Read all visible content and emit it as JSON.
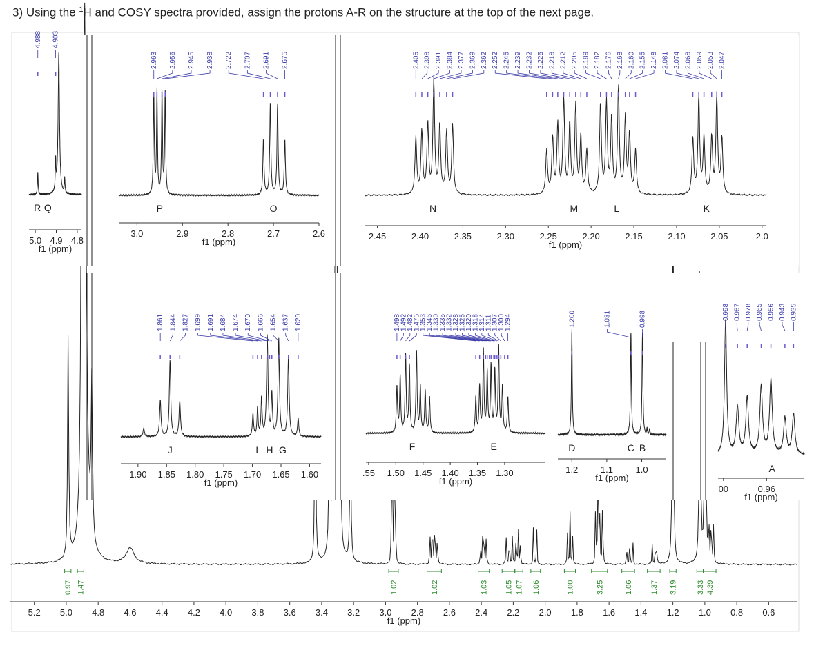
{
  "question": {
    "prefix": "3) Using the ",
    "sup": "1",
    "suffix": "H and COSY spectra provided, assign the protons A-R on the structure at the top of the next page."
  },
  "colors": {
    "spectrum": "#222222",
    "peak_label": "#3a3aa8",
    "integral": "#2e8b2e",
    "axis": "#333333",
    "peak_marker": "#6a5acd"
  },
  "chart_data": [
    {
      "type": "line",
      "name_tag": "main",
      "xlabel": "f1 (ppm)",
      "xlim": [
        5.35,
        0.42
      ],
      "ticks": [
        "5.2",
        "5.0",
        "4.8",
        "4.6",
        "4.4",
        "4.2",
        "4.0",
        "3.8",
        "3.6",
        "3.4",
        "3.2",
        "3.0",
        "2.8",
        "2.6",
        "2.4",
        "2.2",
        "2.0",
        "1.8",
        "1.6",
        "1.4",
        "1.2",
        "1.0",
        "0.8",
        "0.6"
      ],
      "peaks": [
        {
          "x": 4.988,
          "h": 0.42,
          "w": 0.004
        },
        {
          "x": 4.903,
          "h": 0.62,
          "w": 0.006
        },
        {
          "x": 4.885,
          "h": 1.0,
          "w": 0.012
        },
        {
          "x": 4.84,
          "h": 0.3,
          "w": 0.005
        },
        {
          "x": 4.6,
          "h": 0.03,
          "w": 0.03
        },
        {
          "x": 3.44,
          "h": 0.36,
          "w": 0.004
        },
        {
          "x": 3.35,
          "h": 0.4,
          "w": 0.004
        },
        {
          "x": 3.31,
          "h": 1.0,
          "w": 0.008
        },
        {
          "x": 3.28,
          "h": 0.12,
          "w": 0.004
        },
        {
          "x": 3.22,
          "h": 0.27,
          "w": 0.004
        },
        {
          "x": 2.963,
          "h": 0.15,
          "w": 0.002
        },
        {
          "x": 2.956,
          "h": 0.15,
          "w": 0.002
        },
        {
          "x": 2.945,
          "h": 0.15,
          "w": 0.002
        },
        {
          "x": 2.938,
          "h": 0.15,
          "w": 0.002
        },
        {
          "x": 2.722,
          "h": 0.07,
          "w": 0.002
        },
        {
          "x": 2.707,
          "h": 0.12,
          "w": 0.002
        },
        {
          "x": 2.691,
          "h": 0.12,
          "w": 0.002
        },
        {
          "x": 2.675,
          "h": 0.07,
          "w": 0.002
        },
        {
          "x": 2.405,
          "h": 0.05,
          "w": 0.002
        },
        {
          "x": 2.391,
          "h": 0.06,
          "w": 0.002
        },
        {
          "x": 2.384,
          "h": 0.08,
          "w": 0.002
        },
        {
          "x": 2.369,
          "h": 0.06,
          "w": 0.002
        },
        {
          "x": 2.245,
          "h": 0.06,
          "w": 0.002
        },
        {
          "x": 2.225,
          "h": 0.07,
          "w": 0.002
        },
        {
          "x": 2.205,
          "h": 0.06,
          "w": 0.002
        },
        {
          "x": 2.182,
          "h": 0.07,
          "w": 0.002
        },
        {
          "x": 2.168,
          "h": 0.07,
          "w": 0.002
        },
        {
          "x": 2.155,
          "h": 0.05,
          "w": 0.002
        },
        {
          "x": 2.074,
          "h": 0.07,
          "w": 0.002
        },
        {
          "x": 2.053,
          "h": 0.07,
          "w": 0.002
        },
        {
          "x": 1.861,
          "h": 0.06,
          "w": 0.002
        },
        {
          "x": 1.844,
          "h": 0.1,
          "w": 0.002
        },
        {
          "x": 1.827,
          "h": 0.06,
          "w": 0.002
        },
        {
          "x": 1.684,
          "h": 0.14,
          "w": 0.002
        },
        {
          "x": 1.67,
          "h": 0.2,
          "w": 0.002
        },
        {
          "x": 1.66,
          "h": 0.18,
          "w": 0.002
        },
        {
          "x": 1.64,
          "h": 0.16,
          "w": 0.002
        },
        {
          "x": 1.49,
          "h": 0.04,
          "w": 0.002
        },
        {
          "x": 1.47,
          "h": 0.05,
          "w": 0.002
        },
        {
          "x": 1.45,
          "h": 0.04,
          "w": 0.002
        },
        {
          "x": 1.33,
          "h": 0.04,
          "w": 0.002
        },
        {
          "x": 1.31,
          "h": 0.05,
          "w": 0.002
        },
        {
          "x": 1.3,
          "h": 0.04,
          "w": 0.002
        },
        {
          "x": 1.2,
          "h": 1.0,
          "w": 0.003
        },
        {
          "x": 1.031,
          "h": 0.93,
          "w": 0.003
        },
        {
          "x": 0.998,
          "h": 0.95,
          "w": 0.003
        },
        {
          "x": 0.975,
          "h": 0.1,
          "w": 0.002
        },
        {
          "x": 0.96,
          "h": 0.12,
          "w": 0.002
        },
        {
          "x": 0.945,
          "h": 0.08,
          "w": 0.002
        }
      ],
      "integrals": [
        {
          "x1": 5.01,
          "x2": 4.97,
          "label": "0.97"
        },
        {
          "x1": 4.93,
          "x2": 4.89,
          "label": "1.47"
        },
        {
          "x1": 2.98,
          "x2": 2.92,
          "label": "1.02"
        },
        {
          "x1": 2.74,
          "x2": 2.65,
          "label": "1.02"
        },
        {
          "x1": 2.42,
          "x2": 2.35,
          "label": "1.03"
        },
        {
          "x1": 2.27,
          "x2": 2.19,
          "label": "1.05"
        },
        {
          "x1": 2.19,
          "x2": 2.14,
          "label": "1.07"
        },
        {
          "x1": 2.09,
          "x2": 2.03,
          "label": "1.06"
        },
        {
          "x1": 1.88,
          "x2": 1.81,
          "label": "1.00"
        },
        {
          "x1": 1.71,
          "x2": 1.61,
          "label": "3.25"
        },
        {
          "x1": 1.52,
          "x2": 1.44,
          "label": "1.06"
        },
        {
          "x1": 1.36,
          "x2": 1.28,
          "label": "1.37"
        },
        {
          "x1": 1.22,
          "x2": 1.18,
          "label": "3.19"
        },
        {
          "x1": 1.05,
          "x2": 1.01,
          "label": "3.33"
        },
        {
          "x1": 1.01,
          "x2": 0.93,
          "label": "4.39"
        }
      ]
    },
    {
      "type": "line",
      "name_tag": "inset-rq",
      "xlabel": "f1 (ppm)",
      "xlim": [
        5.03,
        4.78
      ],
      "ticks": [
        "5.0",
        "4.9",
        "4.8"
      ],
      "peaks": [
        {
          "x": 4.988,
          "h": 0.15,
          "w": 0.002
        },
        {
          "x": 4.903,
          "h": 0.2,
          "w": 0.002
        },
        {
          "x": 4.888,
          "h": 0.97,
          "w": 0.004
        },
        {
          "x": 4.86,
          "h": 0.1,
          "w": 0.002
        }
      ],
      "peak_labels": [
        "4.988",
        "4.903"
      ],
      "letters": [
        {
          "x": 4.99,
          "t": "R"
        },
        {
          "x": 4.94,
          "t": "Q"
        }
      ]
    },
    {
      "type": "line",
      "name_tag": "inset-po",
      "xlabel": "f1 (ppm)",
      "xlim": [
        3.04,
        2.6
      ],
      "ticks": [
        "3.0",
        "2.9",
        "2.8",
        "2.7",
        "2.6"
      ],
      "peaks": [
        {
          "x": 2.963,
          "h": 0.82,
          "w": 0.0012
        },
        {
          "x": 2.956,
          "h": 0.82,
          "w": 0.0012
        },
        {
          "x": 2.945,
          "h": 0.82,
          "w": 0.0012
        },
        {
          "x": 2.938,
          "h": 0.82,
          "w": 0.0012
        },
        {
          "x": 2.722,
          "h": 0.44,
          "w": 0.0015
        },
        {
          "x": 2.707,
          "h": 0.72,
          "w": 0.0015
        },
        {
          "x": 2.691,
          "h": 0.72,
          "w": 0.0015
        },
        {
          "x": 2.675,
          "h": 0.44,
          "w": 0.0015
        }
      ],
      "peak_labels": [
        "2.963",
        "2.956",
        "2.945",
        "2.938",
        "2.722",
        "2.707",
        "2.691",
        "2.675"
      ],
      "letters": [
        {
          "x": 2.95,
          "t": "P"
        },
        {
          "x": 2.7,
          "t": "O"
        }
      ]
    },
    {
      "type": "line",
      "name_tag": "inset-nk",
      "xlabel": "f1 (ppm)",
      "xlim": [
        2.465,
        1.995
      ],
      "ticks": [
        "2.45",
        "2.40",
        "2.35",
        "2.30",
        "2.25",
        "2.20",
        "2.15",
        "2.10",
        "2.05",
        "2.0"
      ],
      "peaks": [
        {
          "x": 2.405,
          "h": 0.45,
          "w": 0.0012
        },
        {
          "x": 2.398,
          "h": 0.5,
          "w": 0.0012
        },
        {
          "x": 2.391,
          "h": 0.55,
          "w": 0.0012
        },
        {
          "x": 2.384,
          "h": 0.9,
          "w": 0.0012
        },
        {
          "x": 2.377,
          "h": 0.55,
          "w": 0.0012
        },
        {
          "x": 2.369,
          "h": 0.5,
          "w": 0.0012
        },
        {
          "x": 2.362,
          "h": 0.55,
          "w": 0.0012
        },
        {
          "x": 2.252,
          "h": 0.35,
          "w": 0.0012
        },
        {
          "x": 2.245,
          "h": 0.45,
          "w": 0.0012
        },
        {
          "x": 2.239,
          "h": 0.55,
          "w": 0.0012
        },
        {
          "x": 2.232,
          "h": 0.75,
          "w": 0.0012
        },
        {
          "x": 2.225,
          "h": 0.55,
          "w": 0.0012
        },
        {
          "x": 2.218,
          "h": 0.7,
          "w": 0.0012
        },
        {
          "x": 2.212,
          "h": 0.45,
          "w": 0.0012
        },
        {
          "x": 2.205,
          "h": 0.35,
          "w": 0.0012
        },
        {
          "x": 2.189,
          "h": 0.72,
          "w": 0.0012
        },
        {
          "x": 2.182,
          "h": 0.72,
          "w": 0.0012
        },
        {
          "x": 2.176,
          "h": 0.6,
          "w": 0.0012
        },
        {
          "x": 2.168,
          "h": 0.85,
          "w": 0.0012
        },
        {
          "x": 2.16,
          "h": 0.6,
          "w": 0.0012
        },
        {
          "x": 2.155,
          "h": 0.48,
          "w": 0.0012
        },
        {
          "x": 2.148,
          "h": 0.35,
          "w": 0.0012
        },
        {
          "x": 2.081,
          "h": 0.45,
          "w": 0.0012
        },
        {
          "x": 2.074,
          "h": 0.78,
          "w": 0.0012
        },
        {
          "x": 2.068,
          "h": 0.45,
          "w": 0.0012
        },
        {
          "x": 2.059,
          "h": 0.45,
          "w": 0.0012
        },
        {
          "x": 2.053,
          "h": 0.78,
          "w": 0.0012
        },
        {
          "x": 2.047,
          "h": 0.45,
          "w": 0.0012
        }
      ],
      "peak_labels": [
        "2.405",
        "2.398",
        "2.391",
        "2.384",
        "2.377",
        "2.369",
        "2.362",
        "2.252",
        "2.245",
        "2.239",
        "2.232",
        "2.225",
        "2.218",
        "2.212",
        "2.205",
        "2.189",
        "2.182",
        "2.176",
        "2.168",
        "2.160",
        "2.155",
        "2.148",
        "2.081",
        "2.074",
        "2.068",
        "2.059",
        "2.053",
        "2.047"
      ],
      "letters": [
        {
          "x": 2.385,
          "t": "N"
        },
        {
          "x": 2.22,
          "t": "M"
        },
        {
          "x": 2.17,
          "t": "L"
        },
        {
          "x": 2.065,
          "t": "K"
        }
      ]
    },
    {
      "type": "line",
      "name_tag": "inset-jg",
      "xlabel": "f1 (ppm)",
      "xlim": [
        1.93,
        1.58
      ],
      "ticks": [
        "1.90",
        "1.85",
        "1.80",
        "1.75",
        "1.70",
        "1.65",
        "1.60"
      ],
      "peaks": [
        {
          "x": 1.89,
          "h": 0.08,
          "w": 0.0015
        },
        {
          "x": 1.861,
          "h": 0.34,
          "w": 0.0015
        },
        {
          "x": 1.844,
          "h": 0.72,
          "w": 0.0015
        },
        {
          "x": 1.827,
          "h": 0.34,
          "w": 0.0015
        },
        {
          "x": 1.699,
          "h": 0.22,
          "w": 0.0012
        },
        {
          "x": 1.691,
          "h": 0.26,
          "w": 0.0012
        },
        {
          "x": 1.684,
          "h": 0.36,
          "w": 0.0012
        },
        {
          "x": 1.674,
          "h": 0.95,
          "w": 0.0015
        },
        {
          "x": 1.666,
          "h": 0.4,
          "w": 0.0012
        },
        {
          "x": 1.654,
          "h": 0.92,
          "w": 0.0015
        },
        {
          "x": 1.637,
          "h": 0.75,
          "w": 0.0015
        },
        {
          "x": 1.62,
          "h": 0.18,
          "w": 0.0012
        }
      ],
      "peak_labels": [
        "1.861",
        "1.844",
        "1.827",
        "1.699",
        "1.691",
        "1.684",
        "1.674",
        "1.670",
        "1.666",
        "1.654",
        "1.637",
        "1.620"
      ],
      "letters": [
        {
          "x": 1.844,
          "t": "J"
        },
        {
          "x": 1.692,
          "t": "I"
        },
        {
          "x": 1.67,
          "t": "H"
        },
        {
          "x": 1.647,
          "t": "G"
        }
      ]
    },
    {
      "type": "line",
      "name_tag": "inset-fe",
      "xlabel": "f1 (ppm)",
      "xlim": [
        1.555,
        1.225
      ],
      "ticks": [
        ".55",
        "1.50",
        "1.45",
        "1.40",
        "1.35",
        "1.30"
      ],
      "peaks": [
        {
          "x": 1.498,
          "h": 0.45,
          "w": 0.0012
        },
        {
          "x": 1.492,
          "h": 0.55,
          "w": 0.0012
        },
        {
          "x": 1.482,
          "h": 0.75,
          "w": 0.0012
        },
        {
          "x": 1.475,
          "h": 0.65,
          "w": 0.0012
        },
        {
          "x": 1.462,
          "h": 0.8,
          "w": 0.0012
        },
        {
          "x": 1.455,
          "h": 0.45,
          "w": 0.0012
        },
        {
          "x": 1.446,
          "h": 0.42,
          "w": 0.0012
        },
        {
          "x": 1.438,
          "h": 0.35,
          "w": 0.0012
        },
        {
          "x": 1.353,
          "h": 0.35,
          "w": 0.0012
        },
        {
          "x": 1.346,
          "h": 0.45,
          "w": 0.0012
        },
        {
          "x": 1.339,
          "h": 0.8,
          "w": 0.0012
        },
        {
          "x": 1.332,
          "h": 0.6,
          "w": 0.0012
        },
        {
          "x": 1.325,
          "h": 0.65,
          "w": 0.0012
        },
        {
          "x": 1.318,
          "h": 0.6,
          "w": 0.0012
        },
        {
          "x": 1.311,
          "h": 0.85,
          "w": 0.0012
        },
        {
          "x": 1.304,
          "h": 0.45,
          "w": 0.0012
        },
        {
          "x": 1.294,
          "h": 0.35,
          "w": 0.0012
        }
      ],
      "peak_labels": [
        "1.498",
        "1.492",
        "1.482",
        "1.475",
        "1.353",
        "1.346",
        "1.339",
        "1.335",
        "1.332",
        "1.328",
        "1.325",
        "1.320",
        "1.318",
        "1.314",
        "1.311",
        "1.307",
        "1.300",
        "1.294"
      ],
      "letters": [
        {
          "x": 1.47,
          "t": "F"
        },
        {
          "x": 1.32,
          "t": "E"
        }
      ]
    },
    {
      "type": "line",
      "name_tag": "inset-dcb",
      "xlabel": "f1 (ppm)",
      "xlim": [
        1.24,
        0.93
      ],
      "ticks": [
        "1.2",
        "1.1",
        "1.0"
      ],
      "peaks": [
        {
          "x": 1.2,
          "h": 0.96,
          "w": 0.0015
        },
        {
          "x": 1.031,
          "h": 0.96,
          "w": 0.0015
        },
        {
          "x": 0.998,
          "h": 0.96,
          "w": 0.0015
        },
        {
          "x": 0.985,
          "h": 0.06,
          "w": 0.001
        },
        {
          "x": 0.978,
          "h": 0.05,
          "w": 0.001
        }
      ],
      "peak_labels": [
        "1.200",
        "1.031",
        "0.998"
      ],
      "letters": [
        {
          "x": 1.2,
          "t": "D"
        },
        {
          "x": 1.031,
          "t": "C"
        },
        {
          "x": 0.998,
          "t": "B"
        }
      ]
    },
    {
      "type": "line",
      "name_tag": "inset-a",
      "xlabel": "f1 (ppm)",
      "xlim": [
        1.005,
        0.925
      ],
      "ticks": [
        "00",
        "0.96"
      ],
      "peaks": [
        {
          "x": 0.998,
          "h": 1.0,
          "w": 0.0012
        },
        {
          "x": 0.987,
          "h": 0.35,
          "w": 0.0015
        },
        {
          "x": 0.978,
          "h": 0.42,
          "w": 0.0015
        },
        {
          "x": 0.965,
          "h": 0.5,
          "w": 0.0015
        },
        {
          "x": 0.956,
          "h": 0.55,
          "w": 0.0015
        },
        {
          "x": 0.943,
          "h": 0.27,
          "w": 0.0015
        },
        {
          "x": 0.935,
          "h": 0.3,
          "w": 0.0015
        }
      ],
      "peak_labels": [
        "0.998",
        "0.987",
        "0.978",
        "0.965",
        "0.956",
        "0.943",
        "0.935"
      ],
      "letters": [
        {
          "x": 0.955,
          "t": "A"
        }
      ]
    }
  ]
}
